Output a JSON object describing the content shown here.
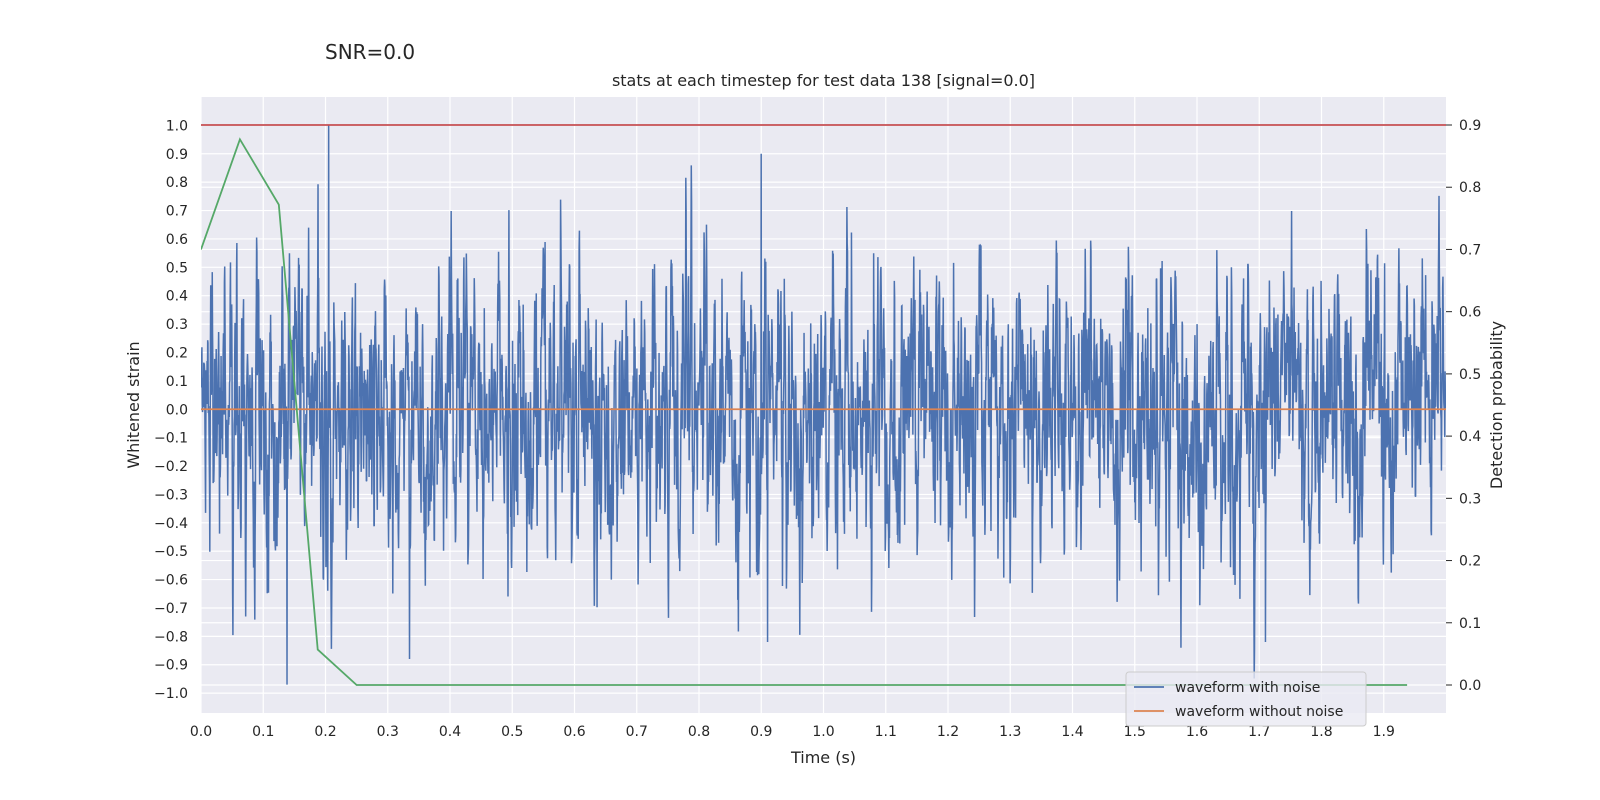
{
  "suptitle": "SNR=0.0",
  "chart_data": {
    "type": "line",
    "title": "stats at each timestep for test data 138 [signal=0.0]",
    "xlabel": "Time (s)",
    "ylabel": "Whitened strain",
    "ylabel_right": "Detection probability",
    "xlim": [
      0.0,
      2.0
    ],
    "ylim": [
      -1.07,
      1.1
    ],
    "ylim_right": [
      -0.045,
      0.945
    ],
    "xticks": [
      0.0,
      0.1,
      0.2,
      0.3,
      0.4,
      0.5,
      0.6,
      0.7,
      0.8,
      0.9,
      1.0,
      1.1,
      1.2,
      1.3,
      1.4,
      1.5,
      1.6,
      1.7,
      1.8,
      1.9
    ],
    "xtick_labels": [
      "0.0",
      "0.1",
      "0.2",
      "0.3",
      "0.4",
      "0.5",
      "0.6",
      "0.7",
      "0.8",
      "0.9",
      "1.0",
      "1.1",
      "1.2",
      "1.3",
      "1.4",
      "1.5",
      "1.6",
      "1.7",
      "1.8",
      "1.9"
    ],
    "yticks": [
      1.0,
      0.9,
      0.8,
      0.7,
      0.6,
      0.5,
      0.4,
      0.3,
      0.2,
      0.1,
      0.0,
      -0.1,
      -0.2,
      -0.3,
      -0.4,
      -0.5,
      -0.6,
      -0.7,
      -0.8,
      -0.9,
      -1.0
    ],
    "ytick_labels": [
      "1.0",
      "0.9",
      "0.8",
      "0.7",
      "0.6",
      "0.5",
      "0.4",
      "0.3",
      "0.2",
      "0.1",
      "0.0",
      "−0.1",
      "−0.2",
      "−0.3",
      "−0.4",
      "−0.5",
      "−0.6",
      "−0.7",
      "−0.8",
      "−0.9",
      "−1.0"
    ],
    "yticks_right": [
      0.9,
      0.8,
      0.7,
      0.6,
      0.5,
      0.4,
      0.3,
      0.2,
      0.1,
      0.0
    ],
    "ytick_labels_right": [
      "0.9",
      "0.8",
      "0.7",
      "0.6",
      "0.5",
      "0.4",
      "0.3",
      "0.2",
      "0.1",
      "0.0"
    ],
    "grid": true,
    "legend_position": "lower-right",
    "series": [
      {
        "name": "waveform with noise",
        "color": "#4c72b0",
        "axis": "left",
        "sample_rate": 2048,
        "duration": 2.0,
        "amplitude_max": 1.0,
        "amplitude_min": -0.97,
        "note_peaks": [
          [
            0.205,
            1.0
          ],
          [
            0.138,
            -0.97
          ],
          [
            0.335,
            -0.88
          ],
          [
            0.9,
            0.9
          ],
          [
            0.91,
            -0.82
          ],
          [
            1.71,
            -0.82
          ],
          [
            1.6,
            0.3
          ]
        ]
      },
      {
        "name": "waveform without noise",
        "color": "#dd8452",
        "axis": "left",
        "x": [
          0.0,
          2.0
        ],
        "y": [
          0.0,
          0.0
        ]
      },
      {
        "color": "#55a868",
        "axis": "right",
        "x": [
          0.0,
          0.0625,
          0.125,
          0.1875,
          0.25,
          1.9375
        ],
        "y": [
          0.7,
          0.877,
          0.772,
          0.057,
          0.0,
          0.0
        ]
      },
      {
        "color": "#c44e52",
        "axis": "right",
        "x": [
          0.0,
          2.0
        ],
        "y": [
          0.9,
          0.9
        ]
      }
    ]
  },
  "colors": {
    "plot_background": "#eaeaf2",
    "grid": "#ffffff",
    "text": "#262626"
  }
}
